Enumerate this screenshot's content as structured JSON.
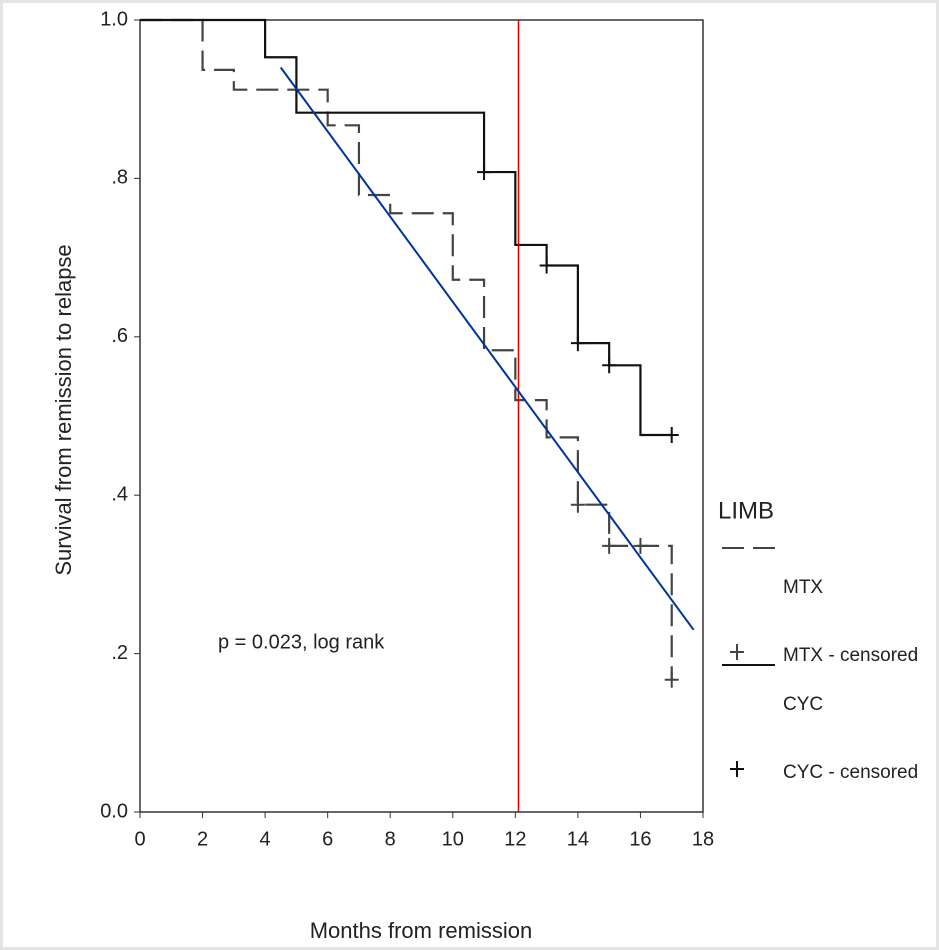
{
  "chart_data": {
    "type": "survival-step",
    "x_label": "Months from remission",
    "y_label": "Survival from remission to relapse",
    "annotation": "p = 0.023, log rank",
    "legend_title": "LIMB",
    "xlim": [
      0,
      18
    ],
    "xticks": [
      0,
      2,
      4,
      6,
      8,
      10,
      12,
      14,
      16,
      18
    ],
    "ylim": [
      0,
      1
    ],
    "yticks": [
      {
        "value": 0,
        "label": "0.0"
      },
      {
        "value": 0.2,
        "label": ".2"
      },
      {
        "value": 0.4,
        "label": ".4"
      },
      {
        "value": 0.6,
        "label": ".6"
      },
      {
        "value": 0.8,
        "label": ".8"
      },
      {
        "value": 1,
        "label": "1.0"
      }
    ],
    "series": [
      {
        "name": "MTX",
        "color": "#444444",
        "dashed": true,
        "x": [
          0,
          2,
          3,
          6,
          7,
          8,
          10,
          11,
          12,
          13,
          14,
          15,
          17
        ],
        "values": [
          1.0,
          0.937,
          0.912,
          0.867,
          0.779,
          0.756,
          0.672,
          0.583,
          0.52,
          0.473,
          0.388,
          0.336,
          0.167
        ],
        "censored": {
          "name": "MTX - censored",
          "x": [
            14,
            15,
            16,
            17
          ],
          "values": [
            0.388,
            0.336,
            0.336,
            0.167
          ]
        }
      },
      {
        "name": "CYC",
        "color": "#111111",
        "dashed": false,
        "x": [
          0,
          4,
          5,
          11,
          12,
          13,
          14,
          15,
          16
        ],
        "values": [
          1.0,
          0.953,
          0.883,
          0.808,
          0.716,
          0.69,
          0.592,
          0.564,
          0.476
        ],
        "censored": {
          "name": "CYC - censored",
          "x": [
            11,
            13,
            14,
            15,
            17
          ],
          "values": [
            0.808,
            0.69,
            0.592,
            0.564,
            0.476
          ]
        }
      }
    ],
    "vline": {
      "x": 12.1,
      "color": "#e00000"
    },
    "trend_line": {
      "x": [
        4.5,
        17.7
      ],
      "values": [
        0.94,
        0.23
      ],
      "color": "#003399"
    }
  }
}
